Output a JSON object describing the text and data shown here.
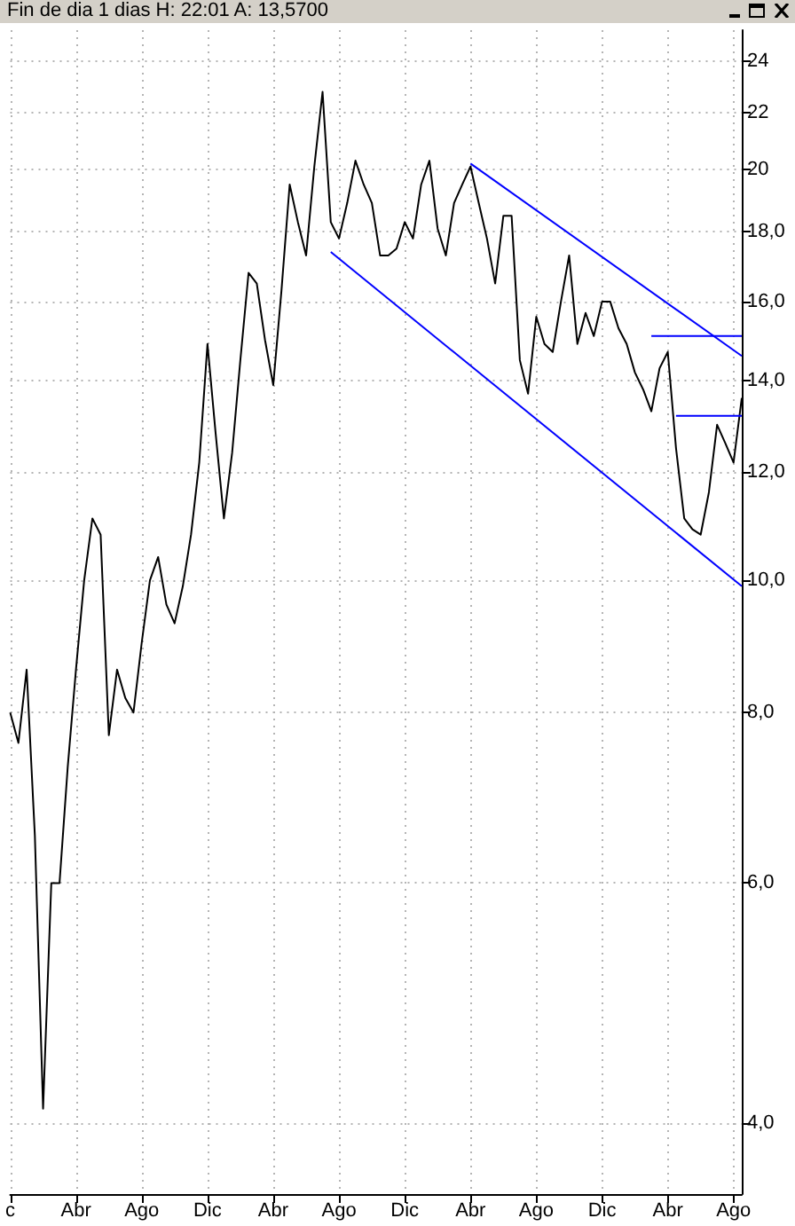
{
  "chart_data": {
    "type": "line",
    "title": "Fin de dia 1 dias H: 22:01 A: 13,5700",
    "categories": [
      "c",
      null,
      null,
      null,
      null,
      null,
      null,
      null,
      "Abr",
      null,
      null,
      null,
      null,
      null,
      null,
      null,
      "Ago",
      null,
      null,
      null,
      null,
      null,
      null,
      null,
      "Dic",
      null,
      null,
      null,
      null,
      null,
      null,
      null,
      "Abr",
      null,
      null,
      null,
      null,
      null,
      null,
      null,
      "Ago",
      null,
      null,
      null,
      null,
      null,
      null,
      null,
      "Dic",
      null,
      null,
      null,
      null,
      null,
      null,
      null,
      "Abr",
      null,
      null,
      null,
      null,
      null,
      null,
      null,
      "Ago",
      null,
      null,
      null,
      null,
      null,
      null,
      null,
      "Dic",
      null,
      null,
      null,
      null,
      null,
      null,
      null,
      "Abr",
      null,
      null,
      null,
      null,
      null,
      null,
      null,
      "Ago",
      null
    ],
    "log": true,
    "grid": true,
    "marker": "none",
    "line_style": "solid",
    "ylim": [
      3.55,
      25.3
    ],
    "yticks": [
      {
        "value": 4,
        "label": "4,0"
      },
      {
        "value": 6,
        "label": "6,0"
      },
      {
        "value": 8,
        "label": "8,0"
      },
      {
        "value": 10,
        "label": "10,0"
      },
      {
        "value": 12,
        "label": "12,0"
      },
      {
        "value": 14,
        "label": "14,0"
      },
      {
        "value": 16,
        "label": "16,0"
      },
      {
        "value": 18,
        "label": "18,0"
      },
      20,
      22,
      24
    ],
    "series": [
      {
        "color": "#000000",
        "values": [
          8.0,
          7.6,
          8.6,
          6.5,
          4.1,
          6.0,
          6.0,
          7.3,
          8.6,
          10.0,
          11.1,
          10.8,
          7.7,
          8.6,
          8.2,
          8.0,
          9.0,
          10.0,
          10.4,
          9.6,
          9.3,
          9.9,
          10.8,
          12.2,
          14.9,
          12.8,
          11.1,
          12.4,
          14.5,
          16.8,
          16.5,
          15.0,
          13.9,
          16.3,
          19.5,
          18.3,
          17.3,
          20.1,
          22.8,
          18.3,
          17.8,
          18.9,
          20.3,
          19.5,
          18.9,
          17.3,
          17.3,
          17.5,
          18.3,
          17.8,
          19.5,
          20.3,
          18.1,
          17.3,
          18.9,
          19.5,
          20.1,
          18.9,
          17.8,
          16.5,
          18.5,
          18.5,
          14.5,
          13.7,
          15.6,
          14.9,
          14.7,
          16.0,
          17.3,
          14.9,
          15.7,
          15.1,
          16.0,
          16.0,
          15.3,
          14.9,
          14.2,
          13.8,
          13.3,
          14.3,
          14.7,
          12.5,
          11.1,
          10.9,
          10.8,
          11.6,
          13.0,
          12.6,
          12.2,
          13.6
        ]
      },
      {
        "color": "#0000ff",
        "values": [
          null,
          null,
          null,
          null,
          null,
          null,
          null,
          null,
          null,
          null,
          null,
          null,
          null,
          null,
          null,
          null,
          null,
          null,
          null,
          null,
          null,
          null,
          null,
          null,
          null,
          null,
          null,
          null,
          null,
          null,
          null,
          null,
          null,
          null,
          null,
          null,
          null,
          null,
          null,
          null,
          null,
          null,
          null,
          null,
          null,
          null,
          null,
          null,
          null,
          null,
          null,
          null,
          null,
          null,
          null,
          null,
          20.2,
          null,
          null,
          null,
          null,
          null,
          null,
          null,
          null,
          null,
          null,
          null,
          null,
          null,
          null,
          null,
          null,
          null,
          null,
          null,
          null,
          null,
          null,
          null,
          null,
          null,
          null,
          null,
          null,
          null,
          null,
          null,
          null,
          14.6
        ]
      },
      {
        "color": "#0000ff",
        "values": [
          null,
          null,
          null,
          null,
          null,
          null,
          null,
          null,
          null,
          null,
          null,
          null,
          null,
          null,
          null,
          null,
          null,
          null,
          null,
          null,
          null,
          null,
          null,
          null,
          null,
          null,
          null,
          null,
          null,
          null,
          null,
          null,
          null,
          null,
          null,
          null,
          null,
          null,
          null,
          17.4,
          null,
          null,
          null,
          null,
          null,
          null,
          null,
          null,
          null,
          null,
          null,
          null,
          null,
          null,
          null,
          null,
          null,
          null,
          null,
          null,
          null,
          null,
          null,
          null,
          null,
          null,
          null,
          null,
          null,
          null,
          null,
          null,
          null,
          null,
          null,
          null,
          null,
          null,
          null,
          null,
          null,
          null,
          null,
          null,
          null,
          null,
          null,
          null,
          null,
          9.9
        ]
      },
      {
        "color": "#0000ff",
        "values": [
          null,
          null,
          null,
          null,
          null,
          null,
          null,
          null,
          null,
          null,
          null,
          null,
          null,
          null,
          null,
          null,
          null,
          null,
          null,
          null,
          null,
          null,
          null,
          null,
          null,
          null,
          null,
          null,
          null,
          null,
          null,
          null,
          null,
          null,
          null,
          null,
          null,
          null,
          null,
          null,
          null,
          null,
          null,
          null,
          null,
          null,
          null,
          null,
          null,
          null,
          null,
          null,
          null,
          null,
          null,
          null,
          null,
          null,
          null,
          null,
          null,
          null,
          null,
          null,
          null,
          null,
          null,
          null,
          null,
          null,
          null,
          null,
          null,
          null,
          null,
          null,
          null,
          null,
          15.1,
          null,
          null,
          null,
          null,
          null,
          null,
          null,
          null,
          null,
          null,
          15.1
        ]
      },
      {
        "color": "#0000ff",
        "values": [
          null,
          null,
          null,
          null,
          null,
          null,
          null,
          null,
          null,
          null,
          null,
          null,
          null,
          null,
          null,
          null,
          null,
          null,
          null,
          null,
          null,
          null,
          null,
          null,
          null,
          null,
          null,
          null,
          null,
          null,
          null,
          null,
          null,
          null,
          null,
          null,
          null,
          null,
          null,
          null,
          null,
          null,
          null,
          null,
          null,
          null,
          null,
          null,
          null,
          null,
          null,
          null,
          null,
          null,
          null,
          null,
          null,
          null,
          null,
          null,
          null,
          null,
          null,
          null,
          null,
          null,
          null,
          null,
          null,
          null,
          null,
          null,
          null,
          null,
          null,
          null,
          null,
          null,
          null,
          null,
          null,
          13.2,
          null,
          null,
          null,
          null,
          null,
          null,
          null,
          13.2
        ]
      }
    ]
  }
}
